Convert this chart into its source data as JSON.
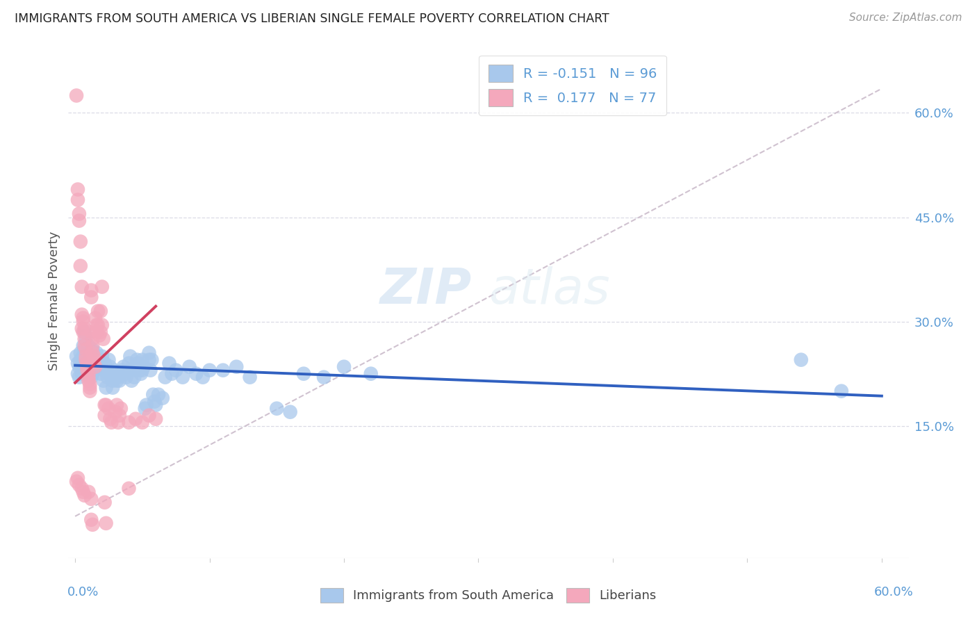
{
  "title": "IMMIGRANTS FROM SOUTH AMERICA VS LIBERIAN SINGLE FEMALE POVERTY CORRELATION CHART",
  "source": "Source: ZipAtlas.com",
  "ylabel": "Single Female Poverty",
  "right_yticks": [
    "60.0%",
    "45.0%",
    "30.0%",
    "15.0%"
  ],
  "right_ytick_vals": [
    0.6,
    0.45,
    0.3,
    0.15
  ],
  "xlim": [
    -0.005,
    0.62
  ],
  "ylim": [
    -0.04,
    0.7
  ],
  "color_blue": "#A8C8EC",
  "color_pink": "#F4A8BC",
  "trendline_blue": "#3060C0",
  "trendline_pink": "#D04060",
  "trendline_dashed_color": "#C8B8C8",
  "watermark_zip": "ZIP",
  "watermark_atlas": "atlas",
  "grid_color": "#D8D8E4",
  "title_color": "#222222",
  "right_label_color": "#5B9BD5",
  "bottom_label_color": "#5B9BD5",
  "blue_scatter": [
    [
      0.001,
      0.25
    ],
    [
      0.002,
      0.24
    ],
    [
      0.002,
      0.225
    ],
    [
      0.003,
      0.235
    ],
    [
      0.003,
      0.22
    ],
    [
      0.004,
      0.255
    ],
    [
      0.004,
      0.245
    ],
    [
      0.005,
      0.235
    ],
    [
      0.005,
      0.225
    ],
    [
      0.006,
      0.265
    ],
    [
      0.006,
      0.25
    ],
    [
      0.007,
      0.285
    ],
    [
      0.007,
      0.26
    ],
    [
      0.008,
      0.275
    ],
    [
      0.008,
      0.235
    ],
    [
      0.009,
      0.255
    ],
    [
      0.01,
      0.265
    ],
    [
      0.01,
      0.23
    ],
    [
      0.01,
      0.24
    ],
    [
      0.011,
      0.25
    ],
    [
      0.012,
      0.235
    ],
    [
      0.012,
      0.22
    ],
    [
      0.013,
      0.26
    ],
    [
      0.013,
      0.225
    ],
    [
      0.014,
      0.24
    ],
    [
      0.015,
      0.23
    ],
    [
      0.016,
      0.255
    ],
    [
      0.017,
      0.235
    ],
    [
      0.018,
      0.245
    ],
    [
      0.019,
      0.225
    ],
    [
      0.02,
      0.25
    ],
    [
      0.02,
      0.235
    ],
    [
      0.021,
      0.215
    ],
    [
      0.022,
      0.23
    ],
    [
      0.022,
      0.24
    ],
    [
      0.023,
      0.205
    ],
    [
      0.024,
      0.22
    ],
    [
      0.025,
      0.245
    ],
    [
      0.025,
      0.225
    ],
    [
      0.026,
      0.235
    ],
    [
      0.027,
      0.22
    ],
    [
      0.028,
      0.205
    ],
    [
      0.028,
      0.215
    ],
    [
      0.029,
      0.23
    ],
    [
      0.03,
      0.22
    ],
    [
      0.031,
      0.215
    ],
    [
      0.032,
      0.22
    ],
    [
      0.033,
      0.215
    ],
    [
      0.034,
      0.225
    ],
    [
      0.035,
      0.23
    ],
    [
      0.036,
      0.235
    ],
    [
      0.037,
      0.225
    ],
    [
      0.038,
      0.22
    ],
    [
      0.04,
      0.23
    ],
    [
      0.04,
      0.24
    ],
    [
      0.041,
      0.25
    ],
    [
      0.042,
      0.215
    ],
    [
      0.043,
      0.23
    ],
    [
      0.044,
      0.22
    ],
    [
      0.045,
      0.235
    ],
    [
      0.046,
      0.245
    ],
    [
      0.047,
      0.24
    ],
    [
      0.048,
      0.23
    ],
    [
      0.049,
      0.225
    ],
    [
      0.05,
      0.23
    ],
    [
      0.05,
      0.245
    ],
    [
      0.051,
      0.235
    ],
    [
      0.052,
      0.175
    ],
    [
      0.053,
      0.18
    ],
    [
      0.055,
      0.255
    ],
    [
      0.055,
      0.245
    ],
    [
      0.056,
      0.23
    ],
    [
      0.057,
      0.245
    ],
    [
      0.058,
      0.195
    ],
    [
      0.059,
      0.185
    ],
    [
      0.06,
      0.18
    ],
    [
      0.062,
      0.195
    ],
    [
      0.065,
      0.19
    ],
    [
      0.067,
      0.22
    ],
    [
      0.07,
      0.24
    ],
    [
      0.072,
      0.225
    ],
    [
      0.075,
      0.23
    ],
    [
      0.08,
      0.22
    ],
    [
      0.085,
      0.235
    ],
    [
      0.09,
      0.225
    ],
    [
      0.095,
      0.22
    ],
    [
      0.1,
      0.23
    ],
    [
      0.11,
      0.23
    ],
    [
      0.12,
      0.235
    ],
    [
      0.13,
      0.22
    ],
    [
      0.15,
      0.175
    ],
    [
      0.16,
      0.17
    ],
    [
      0.17,
      0.225
    ],
    [
      0.185,
      0.22
    ],
    [
      0.2,
      0.235
    ],
    [
      0.22,
      0.225
    ],
    [
      0.54,
      0.245
    ],
    [
      0.57,
      0.2
    ]
  ],
  "pink_scatter": [
    [
      0.001,
      0.625
    ],
    [
      0.002,
      0.49
    ],
    [
      0.002,
      0.475
    ],
    [
      0.003,
      0.455
    ],
    [
      0.003,
      0.445
    ],
    [
      0.004,
      0.415
    ],
    [
      0.004,
      0.38
    ],
    [
      0.005,
      0.35
    ],
    [
      0.005,
      0.31
    ],
    [
      0.005,
      0.29
    ],
    [
      0.006,
      0.305
    ],
    [
      0.006,
      0.285
    ],
    [
      0.006,
      0.3
    ],
    [
      0.007,
      0.29
    ],
    [
      0.007,
      0.275
    ],
    [
      0.007,
      0.265
    ],
    [
      0.008,
      0.26
    ],
    [
      0.008,
      0.25
    ],
    [
      0.008,
      0.245
    ],
    [
      0.009,
      0.24
    ],
    [
      0.009,
      0.235
    ],
    [
      0.009,
      0.23
    ],
    [
      0.01,
      0.225
    ],
    [
      0.01,
      0.22
    ],
    [
      0.01,
      0.215
    ],
    [
      0.011,
      0.21
    ],
    [
      0.011,
      0.205
    ],
    [
      0.011,
      0.2
    ],
    [
      0.012,
      0.345
    ],
    [
      0.012,
      0.335
    ],
    [
      0.012,
      0.285
    ],
    [
      0.013,
      0.275
    ],
    [
      0.013,
      0.265
    ],
    [
      0.013,
      0.255
    ],
    [
      0.014,
      0.25
    ],
    [
      0.014,
      0.245
    ],
    [
      0.014,
      0.24
    ],
    [
      0.015,
      0.235
    ],
    [
      0.015,
      0.305
    ],
    [
      0.016,
      0.285
    ],
    [
      0.016,
      0.295
    ],
    [
      0.017,
      0.315
    ],
    [
      0.017,
      0.295
    ],
    [
      0.018,
      0.28
    ],
    [
      0.019,
      0.285
    ],
    [
      0.019,
      0.315
    ],
    [
      0.02,
      0.295
    ],
    [
      0.02,
      0.35
    ],
    [
      0.021,
      0.275
    ],
    [
      0.022,
      0.18
    ],
    [
      0.022,
      0.165
    ],
    [
      0.023,
      0.18
    ],
    [
      0.025,
      0.175
    ],
    [
      0.026,
      0.16
    ],
    [
      0.027,
      0.155
    ],
    [
      0.03,
      0.17
    ],
    [
      0.031,
      0.18
    ],
    [
      0.032,
      0.155
    ],
    [
      0.033,
      0.165
    ],
    [
      0.034,
      0.175
    ],
    [
      0.04,
      0.155
    ],
    [
      0.045,
      0.16
    ],
    [
      0.05,
      0.155
    ],
    [
      0.055,
      0.165
    ],
    [
      0.06,
      0.16
    ],
    [
      0.001,
      0.07
    ],
    [
      0.002,
      0.075
    ],
    [
      0.003,
      0.065
    ],
    [
      0.005,
      0.06
    ],
    [
      0.006,
      0.055
    ],
    [
      0.007,
      0.05
    ],
    [
      0.01,
      0.055
    ],
    [
      0.012,
      0.045
    ],
    [
      0.022,
      0.04
    ],
    [
      0.04,
      0.06
    ],
    [
      0.012,
      0.015
    ],
    [
      0.013,
      0.008
    ],
    [
      0.023,
      0.01
    ]
  ],
  "blue_trend_x": [
    0.0,
    0.6
  ],
  "blue_trend_y": [
    0.237,
    0.193
  ],
  "pink_trend_x": [
    0.0,
    0.06
  ],
  "pink_trend_y": [
    0.212,
    0.322
  ],
  "diag_trend_x": [
    0.0,
    0.6
  ],
  "diag_trend_y": [
    0.02,
    0.635
  ]
}
